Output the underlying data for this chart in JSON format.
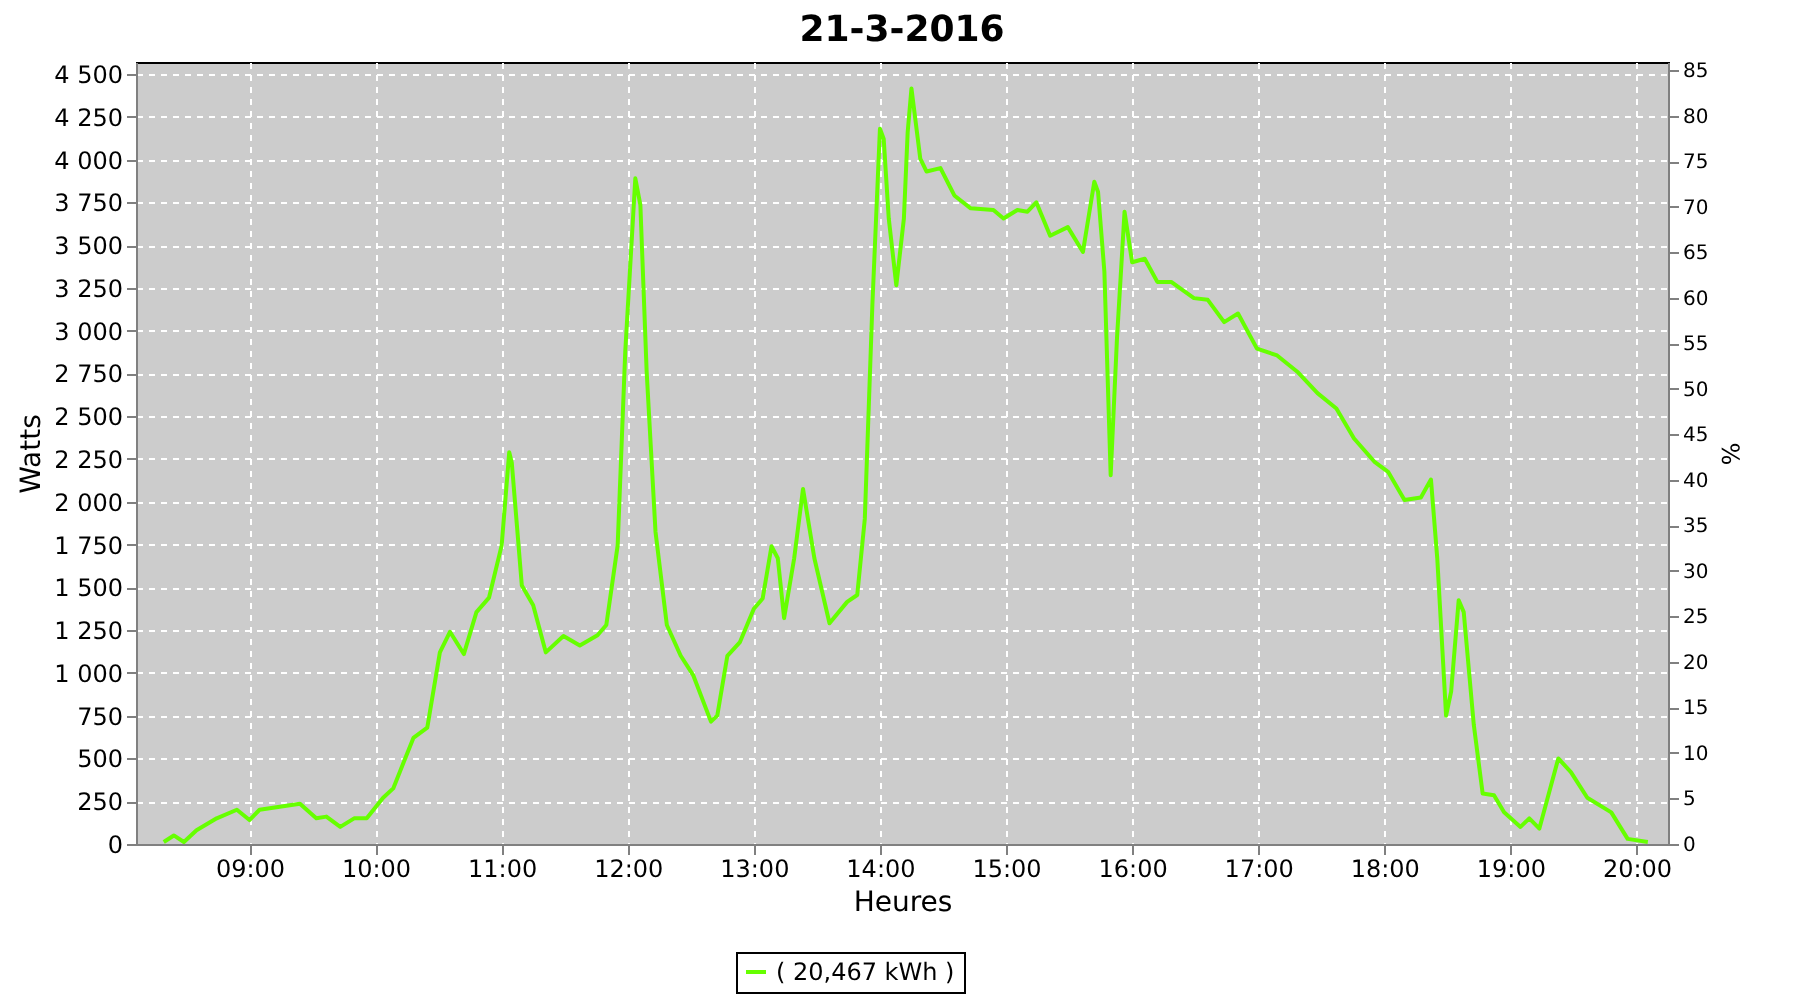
{
  "chart_data": {
    "type": "line",
    "title": "21-3-2016",
    "xlabel": "Heures",
    "ylabel": "Watts",
    "y2label": "%",
    "xlim": [
      8.1,
      20.25
    ],
    "ylim": [
      0,
      4570
    ],
    "y2lim": [
      0,
      85.9
    ],
    "xticks": [
      {
        "value": 9,
        "label": "09:00"
      },
      {
        "value": 10,
        "label": "10:00"
      },
      {
        "value": 11,
        "label": "11:00"
      },
      {
        "value": 12,
        "label": "12:00"
      },
      {
        "value": 13,
        "label": "13:00"
      },
      {
        "value": 14,
        "label": "14:00"
      },
      {
        "value": 15,
        "label": "15:00"
      },
      {
        "value": 16,
        "label": "16:00"
      },
      {
        "value": 17,
        "label": "17:00"
      },
      {
        "value": 18,
        "label": "18:00"
      },
      {
        "value": 19,
        "label": "19:00"
      },
      {
        "value": 20,
        "label": "20:00"
      }
    ],
    "yticks": [
      0,
      250,
      500,
      750,
      {
        "value": 1000,
        "label": "1 000"
      },
      {
        "value": 1250,
        "label": "1 250"
      },
      {
        "value": 1500,
        "label": "1 500"
      },
      {
        "value": 1750,
        "label": "1 750"
      },
      {
        "value": 2000,
        "label": "2 000"
      },
      {
        "value": 2250,
        "label": "2 250"
      },
      {
        "value": 2500,
        "label": "2 500"
      },
      {
        "value": 2750,
        "label": "2 750"
      },
      {
        "value": 3000,
        "label": "3 000"
      },
      {
        "value": 3250,
        "label": "3 250"
      },
      {
        "value": 3500,
        "label": "3 500"
      },
      {
        "value": 3750,
        "label": "3 750"
      },
      {
        "value": 4000,
        "label": "4 000"
      },
      {
        "value": 4250,
        "label": "4 250"
      },
      {
        "value": 4500,
        "label": "4 500"
      }
    ],
    "y2ticks": [
      0,
      5,
      10,
      15,
      20,
      25,
      30,
      35,
      40,
      45,
      50,
      55,
      60,
      65,
      70,
      75,
      80,
      85
    ],
    "grid": true,
    "legend": "bottom",
    "marker": "none",
    "line_style": "solid",
    "series": [
      {
        "name": "( 20,467 kWh )",
        "color": "#66ff00",
        "x": [
          8.32,
          8.4,
          8.48,
          8.58,
          8.74,
          8.9,
          9.0,
          9.08,
          9.4,
          9.53,
          9.61,
          9.72,
          9.83,
          9.93,
          10.06,
          10.14,
          10.3,
          10.41,
          10.51,
          10.59,
          10.7,
          10.8,
          10.9,
          11.0,
          11.06,
          11.08,
          11.16,
          11.25,
          11.35,
          11.49,
          11.62,
          11.76,
          11.83,
          11.92,
          11.98,
          12.06,
          12.1,
          12.15,
          12.22,
          12.31,
          12.42,
          12.52,
          12.66,
          12.71,
          12.79,
          12.89,
          13.0,
          13.07,
          13.14,
          13.19,
          13.24,
          13.32,
          13.39,
          13.48,
          13.6,
          13.74,
          13.82,
          13.88,
          13.94,
          14.0,
          14.03,
          14.07,
          14.13,
          14.19,
          14.22,
          14.25,
          14.32,
          14.37,
          14.48,
          14.59,
          14.72,
          14.9,
          14.98,
          15.09,
          15.17,
          15.24,
          15.35,
          15.49,
          15.61,
          15.7,
          15.73,
          15.78,
          15.83,
          15.88,
          15.94,
          16.0,
          16.1,
          16.2,
          16.31,
          16.49,
          16.6,
          16.73,
          16.84,
          16.99,
          17.15,
          17.31,
          17.47,
          17.62,
          17.76,
          17.92,
          18.03,
          18.16,
          18.29,
          18.37,
          18.42,
          18.49,
          18.53,
          18.59,
          18.63,
          18.71,
          18.78,
          18.87,
          18.95,
          19.08,
          19.15,
          19.23,
          19.38,
          19.48,
          19.61,
          19.8,
          19.93,
          20.09
        ],
        "values": [
          12,
          50,
          12,
          80,
          150,
          200,
          140,
          200,
          235,
          150,
          160,
          100,
          150,
          150,
          270,
          325,
          620,
          680,
          1120,
          1240,
          1110,
          1355,
          1440,
          1745,
          2290,
          2230,
          1510,
          1395,
          1120,
          1215,
          1160,
          1220,
          1280,
          1745,
          2875,
          3890,
          3735,
          2760,
          1825,
          1280,
          1100,
          985,
          715,
          750,
          1100,
          1180,
          1375,
          1435,
          1740,
          1670,
          1320,
          1670,
          2075,
          1670,
          1290,
          1415,
          1455,
          1900,
          3150,
          4180,
          4120,
          3655,
          3265,
          3655,
          4160,
          4415,
          4005,
          3930,
          3950,
          3790,
          3715,
          3705,
          3655,
          3705,
          3695,
          3750,
          3555,
          3605,
          3460,
          3870,
          3810,
          3345,
          2155,
          2955,
          3695,
          3400,
          3420,
          3285,
          3285,
          3190,
          3180,
          3050,
          3100,
          2895,
          2855,
          2760,
          2635,
          2545,
          2370,
          2235,
          2175,
          2010,
          2025,
          2130,
          1670,
          750,
          890,
          1425,
          1355,
          695,
          295,
          285,
          185,
          100,
          150,
          90,
          500,
          420,
          270,
          185,
          30,
          12
        ]
      }
    ]
  }
}
